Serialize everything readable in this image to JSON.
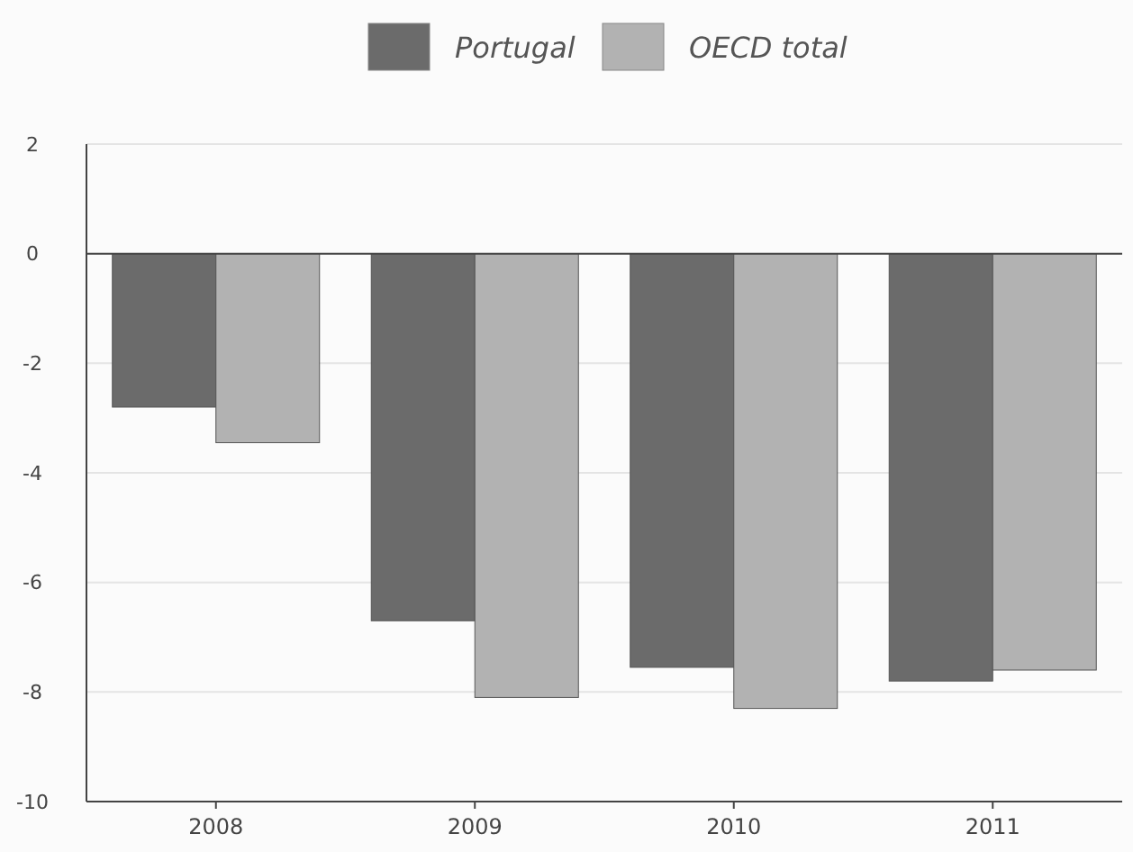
{
  "chart_data": {
    "type": "bar",
    "categories": [
      "2008",
      "2009",
      "2010",
      "2011"
    ],
    "series": [
      {
        "name": "Portugal",
        "color": "#6b6b6b",
        "values": [
          -2.8,
          -6.7,
          -7.55,
          -7.8
        ]
      },
      {
        "name": "OECD total",
        "color": "#b2b2b2",
        "values": [
          -3.45,
          -8.1,
          -8.3,
          -7.6
        ]
      }
    ],
    "ylim": [
      -10,
      2
    ],
    "yticks": [
      -10,
      -8,
      -6,
      -4,
      -2,
      0,
      2
    ],
    "grid": "y",
    "legend": "top"
  }
}
